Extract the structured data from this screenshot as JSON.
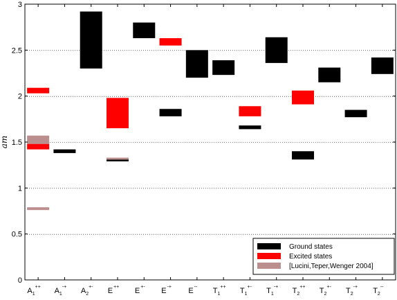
{
  "chart_data": {
    "type": "bar",
    "subtype": "floating-range",
    "ylabel": "am",
    "xlabel": "",
    "ylim": [
      0,
      3
    ],
    "yticks": [
      0,
      0.5,
      1,
      1.5,
      2,
      2.5,
      3
    ],
    "ytick_labels": [
      "0",
      "0.5",
      "1",
      "1.5",
      "2",
      "2.5",
      "3"
    ],
    "grid": "horizontal-dotted",
    "legend_position": "bottom-right",
    "categories": [
      {
        "base": "A",
        "sub": "1",
        "sup": "++"
      },
      {
        "base": "A",
        "sub": "1",
        "sup": "-+"
      },
      {
        "base": "A",
        "sub": "2",
        "sup": "+-"
      },
      {
        "base": "E",
        "sub": "",
        "sup": "++"
      },
      {
        "base": "E",
        "sub": "",
        "sup": "+-"
      },
      {
        "base": "E",
        "sub": "",
        "sup": "-+"
      },
      {
        "base": "E",
        "sub": "",
        "sup": "--"
      },
      {
        "base": "T",
        "sub": "1",
        "sup": "++"
      },
      {
        "base": "T",
        "sub": "1",
        "sup": "+-"
      },
      {
        "base": "T",
        "sub": "1",
        "sup": "-+"
      },
      {
        "base": "T",
        "sub": "2",
        "sup": "++"
      },
      {
        "base": "T",
        "sub": "2",
        "sup": "+-"
      },
      {
        "base": "T",
        "sub": "2",
        "sup": "-+"
      },
      {
        "base": "T",
        "sub": "2",
        "sup": "--"
      }
    ],
    "series": [
      {
        "name": "Ground states",
        "color": "#000000",
        "ranges": [
          {
            "cat": 1,
            "low": 1.38,
            "high": 1.42
          },
          {
            "cat": 2,
            "low": 2.3,
            "high": 2.92
          },
          {
            "cat": 3,
            "low": 1.29,
            "high": 1.31
          },
          {
            "cat": 4,
            "low": 2.63,
            "high": 2.8
          },
          {
            "cat": 5,
            "low": 1.78,
            "high": 1.86
          },
          {
            "cat": 6,
            "low": 2.2,
            "high": 2.5
          },
          {
            "cat": 7,
            "low": 2.23,
            "high": 2.39
          },
          {
            "cat": 8,
            "low": 1.64,
            "high": 1.68
          },
          {
            "cat": 9,
            "low": 2.36,
            "high": 2.64
          },
          {
            "cat": 10,
            "low": 1.31,
            "high": 1.4
          },
          {
            "cat": 11,
            "low": 2.15,
            "high": 2.31
          },
          {
            "cat": 12,
            "low": 1.77,
            "high": 1.85
          },
          {
            "cat": 13,
            "low": 2.24,
            "high": 2.42
          }
        ]
      },
      {
        "name": "Excited states",
        "color": "#ff0000",
        "ranges": [
          {
            "cat": 0,
            "low": 2.03,
            "high": 2.09
          },
          {
            "cat": 0,
            "low": 1.42,
            "high": 1.48
          },
          {
            "cat": 3,
            "low": 1.65,
            "high": 1.98
          },
          {
            "cat": 5,
            "low": 2.55,
            "high": 2.63
          },
          {
            "cat": 8,
            "low": 1.78,
            "high": 1.89
          },
          {
            "cat": 10,
            "low": 1.91,
            "high": 2.06
          }
        ]
      },
      {
        "name": "[Lucini,Teper,Wenger 2004]",
        "color": "#bc8f8f",
        "ranges": [
          {
            "cat": 0,
            "low": 1.48,
            "high": 1.57
          },
          {
            "cat": 0,
            "low": 0.76,
            "high": 0.79
          },
          {
            "cat": 3,
            "low": 1.31,
            "high": 1.33
          }
        ]
      }
    ]
  }
}
